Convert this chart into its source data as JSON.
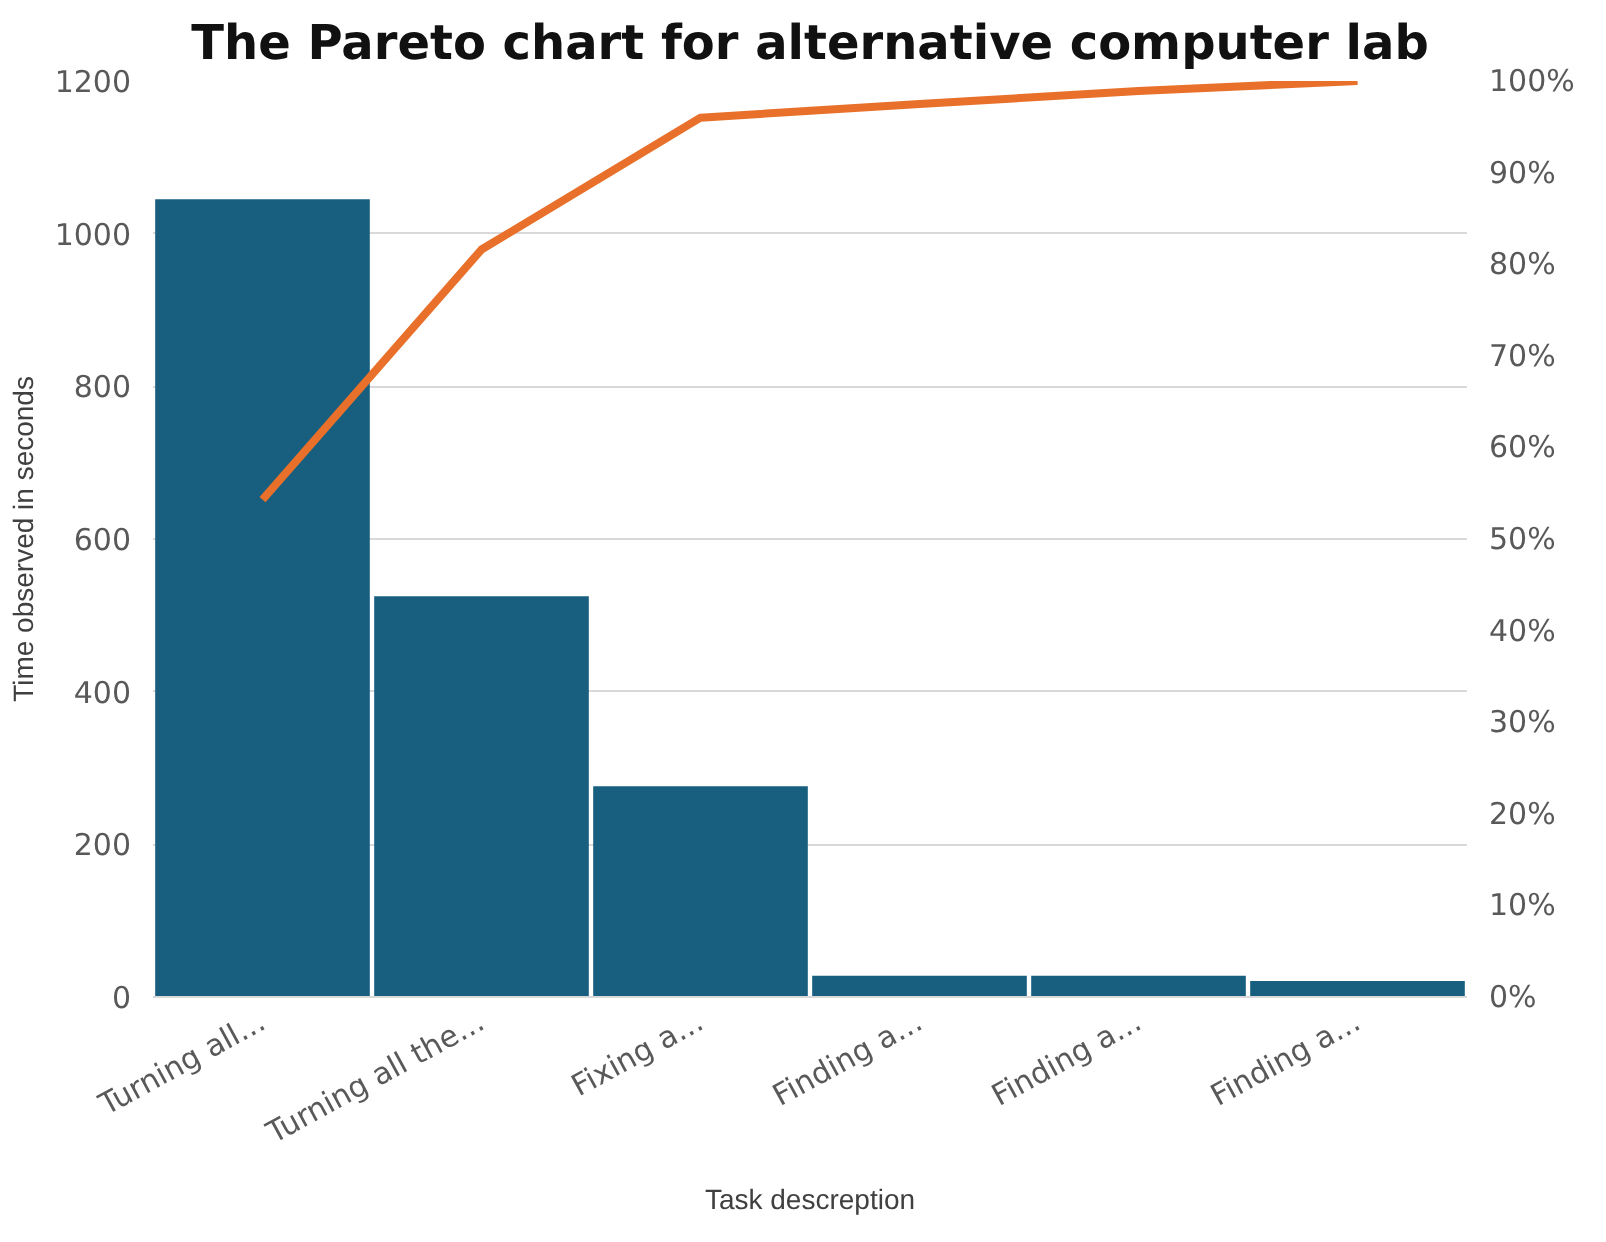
{
  "chart_data": {
    "type": "bar",
    "title": "The Pareto chart for alternative computer lab",
    "xlabel": "Task descreption",
    "ylabel": "Time observed in seconds",
    "categories": [
      "Turning all...",
      "Turning all the...",
      "Fixing a...",
      "Finding a...",
      "Finding a...",
      "Finding a..."
    ],
    "series": [
      {
        "color": "#175e7f",
        "values": [
          1045,
          525,
          276,
          28,
          28,
          21
        ]
      },
      {
        "type": "line",
        "axis": "y2",
        "color": "#e8702a",
        "values": [
          54.3,
          81.6,
          96,
          97.5,
          98.9,
          100
        ]
      }
    ],
    "ylim": [
      0,
      1200
    ],
    "yticks": [
      0,
      200,
      400,
      600,
      800,
      1000,
      1200
    ],
    "y2lim": [
      0,
      100
    ],
    "y2ticks": [
      {
        "value": 0,
        "label": "0%"
      },
      {
        "value": 10,
        "label": "10%"
      },
      {
        "value": 20,
        "label": "20%"
      },
      {
        "value": 30,
        "label": "30%"
      },
      {
        "value": 40,
        "label": "40%"
      },
      {
        "value": 50,
        "label": "50%"
      },
      {
        "value": 60,
        "label": "60%"
      },
      {
        "value": 70,
        "label": "70%"
      },
      {
        "value": 80,
        "label": "80%"
      },
      {
        "value": 90,
        "label": "90%"
      },
      {
        "value": 100,
        "label": "100%"
      }
    ],
    "grid": "y",
    "marker": "none",
    "line_style": "solid"
  }
}
